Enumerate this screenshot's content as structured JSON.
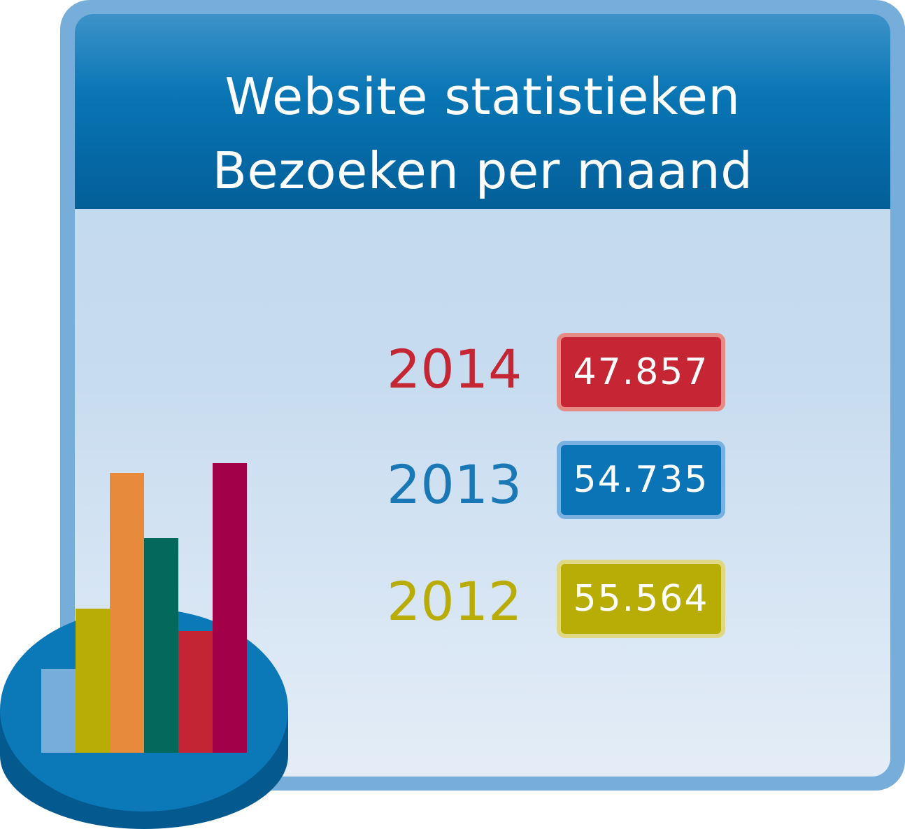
{
  "header": {
    "title_line1": "Website statistieken",
    "title_line2": "Bezoeken per maand"
  },
  "stats": [
    {
      "year": "2014",
      "value": "47.857",
      "color": "#c62633"
    },
    {
      "year": "2013",
      "value": "54.735",
      "color": "#0a74b6"
    },
    {
      "year": "2012",
      "value": "55.564",
      "color": "#b7ad04"
    }
  ],
  "icon": {
    "name": "bar-chart-on-disc-icon",
    "bar_colors": [
      "#77aed9",
      "#b7ad04",
      "#e88a3b",
      "#02695c",
      "#c42534",
      "#a3004a"
    ]
  },
  "colors": {
    "header": "#0a76b5",
    "frame": "#77aed9",
    "background": "#c6dbef"
  }
}
